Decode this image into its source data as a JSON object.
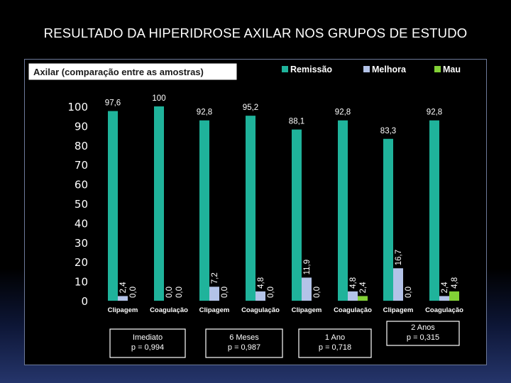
{
  "slide_title": "RESULTADO DA HIPERIDROSE AXILAR NOS GRUPOS DE ESTUDO",
  "colors": {
    "remissao": "#1fb39b",
    "melhora": "#b3c3e8",
    "mau": "#82d036",
    "text": "#ffffff",
    "group_box_border": "#ffffff"
  },
  "chart_data": {
    "type": "bar",
    "title": "Axilar (comparação entre as amostras)",
    "categories": [
      "Clipagem",
      "Coagulação",
      "Clipagem",
      "Coagulação",
      "Clipagem",
      "Coagulação",
      "Clipagem",
      "Coagulação"
    ],
    "series": [
      {
        "name": "Remissão",
        "values": [
          97.6,
          100,
          92.8,
          95.2,
          88.1,
          92.8,
          83.3,
          92.8
        ],
        "labels": [
          "97,6",
          "100",
          "92,8",
          "95,2",
          "88,1",
          "92,8",
          "83,3",
          "92,8"
        ]
      },
      {
        "name": "Melhora",
        "values": [
          2.4,
          0.0,
          7.2,
          4.8,
          11.9,
          4.8,
          16.7,
          2.4
        ],
        "labels": [
          "2,4",
          "0,0",
          "7,2",
          "4,8",
          "11,9",
          "4,8",
          "16,7",
          "2,4"
        ]
      },
      {
        "name": "Mau",
        "values": [
          0.0,
          0.0,
          0.0,
          0.0,
          0.0,
          2.4,
          0.0,
          4.8
        ],
        "labels": [
          "0,0",
          "0,0",
          "0,0",
          "0,0",
          "0,0",
          "2,4",
          "0,0",
          "4,8"
        ]
      }
    ],
    "ylim": [
      0,
      100
    ],
    "yticks": [
      0,
      10,
      20,
      30,
      40,
      50,
      60,
      70,
      80,
      90,
      100
    ],
    "legend_position": "top-right",
    "groups": [
      {
        "label": "Imediato",
        "pvalue": "p = 0,994",
        "boxed": true
      },
      {
        "label": "6 Meses",
        "pvalue": "p = 0,987",
        "boxed": true
      },
      {
        "label": "1 Ano",
        "pvalue": "p = 0,718",
        "boxed": true
      },
      {
        "label": "2 Anos",
        "pvalue": "p = 0,315",
        "boxed": true
      }
    ]
  }
}
